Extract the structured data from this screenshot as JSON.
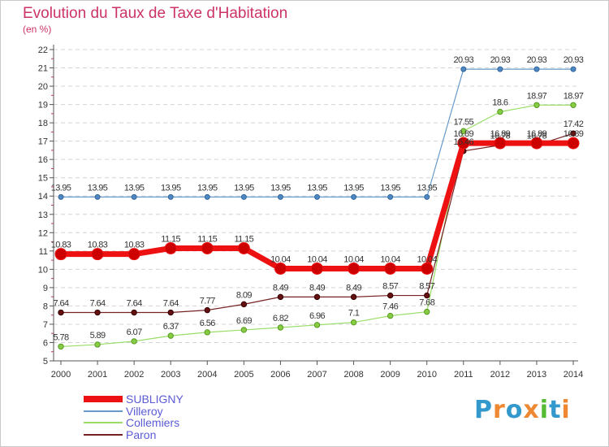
{
  "chart_data": {
    "type": "line",
    "title": "Evolution du Taux de Taxe d'Habitation",
    "unit_label": "(en %)",
    "xlabel": "",
    "ylabel": "",
    "x": [
      "2000",
      "2001",
      "2002",
      "2003",
      "2004",
      "2005",
      "2006",
      "2007",
      "2008",
      "2009",
      "2010",
      "2011",
      "2012",
      "2013",
      "2014"
    ],
    "ylim": [
      5,
      22
    ],
    "yticks": [
      "5",
      "6",
      "7",
      "8",
      "9",
      "10",
      "11",
      "12",
      "13",
      "14",
      "15",
      "16",
      "17",
      "18",
      "19",
      "20",
      "21",
      "22"
    ],
    "grid": "horizontal",
    "legend_position": "bottom-left",
    "series": [
      {
        "name": "SUBLIGNY",
        "color": "#ee1111",
        "values": [
          10.83,
          10.83,
          10.83,
          11.15,
          11.15,
          11.15,
          10.04,
          10.04,
          10.04,
          10.04,
          10.04,
          16.89,
          16.89,
          16.89,
          16.89
        ],
        "labels": [
          "10.83",
          "10.83",
          "10.83",
          "11.15",
          "11.15",
          "11.15",
          "10.04",
          "10.04",
          "10.04",
          "10.04",
          "10.04",
          "16.89",
          "16.89",
          "16.89",
          "16.89"
        ]
      },
      {
        "name": "Villeroy",
        "color": "#6699cc",
        "values": [
          13.95,
          13.95,
          13.95,
          13.95,
          13.95,
          13.95,
          13.95,
          13.95,
          13.95,
          13.95,
          13.95,
          20.93,
          20.93,
          20.93,
          20.93
        ],
        "labels": [
          "13.95",
          "13.95",
          "13.95",
          "13.95",
          "13.95",
          "13.95",
          "13.95",
          "13.95",
          "13.95",
          "13.95",
          "13.95",
          "20.93",
          "20.93",
          "20.93",
          "20.93"
        ]
      },
      {
        "name": "Collemiers",
        "color": "#99dd66",
        "values": [
          5.78,
          5.89,
          6.07,
          6.37,
          6.56,
          6.69,
          6.82,
          6.96,
          7.1,
          7.46,
          7.68,
          17.55,
          18.6,
          18.97,
          18.97
        ],
        "labels": [
          "5.78",
          "5.89",
          "6.07",
          "6.37",
          "6.56",
          "6.69",
          "6.82",
          "6.96",
          "7.1",
          "7.46",
          "7.68",
          "17.55",
          "18.6",
          "18.97",
          "18.97"
        ]
      },
      {
        "name": "Paron",
        "color": "#772222",
        "values": [
          7.64,
          7.64,
          7.64,
          7.64,
          7.77,
          8.09,
          8.49,
          8.49,
          8.49,
          8.57,
          8.57,
          16.46,
          16.78,
          16.78,
          17.42
        ],
        "labels": [
          "7.64",
          "7.64",
          "7.64",
          "7.64",
          "7.77",
          "8.09",
          "8.49",
          "8.49",
          "8.49",
          "8.57",
          "8.57",
          "16.46",
          "16.78",
          "16.78",
          "17.42"
        ]
      }
    ]
  },
  "logo": {
    "text": "Proxiti",
    "letter_colors": [
      "#3399cc",
      "#ee8833",
      "#3399cc",
      "#ee8833",
      "#55bb33",
      "#3399cc",
      "#ee8833"
    ]
  }
}
